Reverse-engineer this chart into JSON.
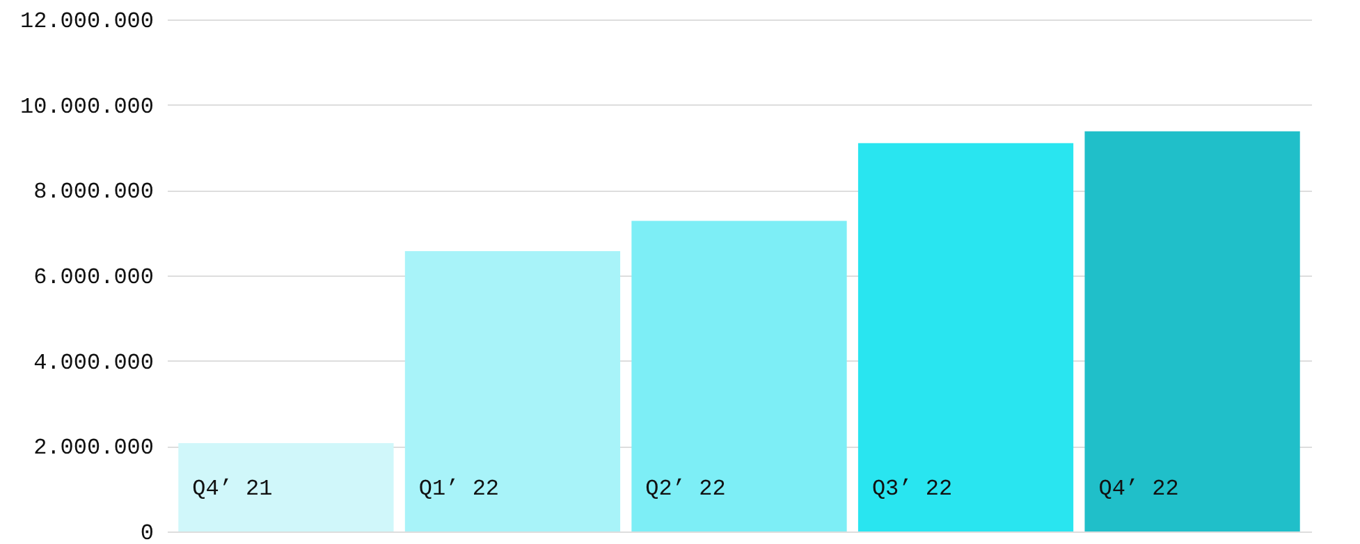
{
  "chart_data": {
    "type": "bar",
    "categories": [
      "Q4’ 21",
      "Q1’ 22",
      "Q2’ 22",
      "Q3’ 22",
      "Q4’ 22"
    ],
    "values": [
      2070000,
      6570000,
      7280000,
      9100000,
      9380000
    ],
    "colors": [
      "#d0f7fa",
      "#a8f3f9",
      "#7deef6",
      "#29e5f0",
      "#20bfc9"
    ],
    "ylim": [
      0,
      12000000
    ],
    "yticks": [
      {
        "value": 0,
        "label": "0"
      },
      {
        "value": 2000000,
        "label": "2.000.000"
      },
      {
        "value": 4000000,
        "label": "4.000.000"
      },
      {
        "value": 6000000,
        "label": "6.000.000"
      },
      {
        "value": 8000000,
        "label": "8.000.000"
      },
      {
        "value": 10000000,
        "label": "10.000.000"
      },
      {
        "value": 12000000,
        "label": "12.000.000"
      }
    ],
    "grid": "y"
  }
}
